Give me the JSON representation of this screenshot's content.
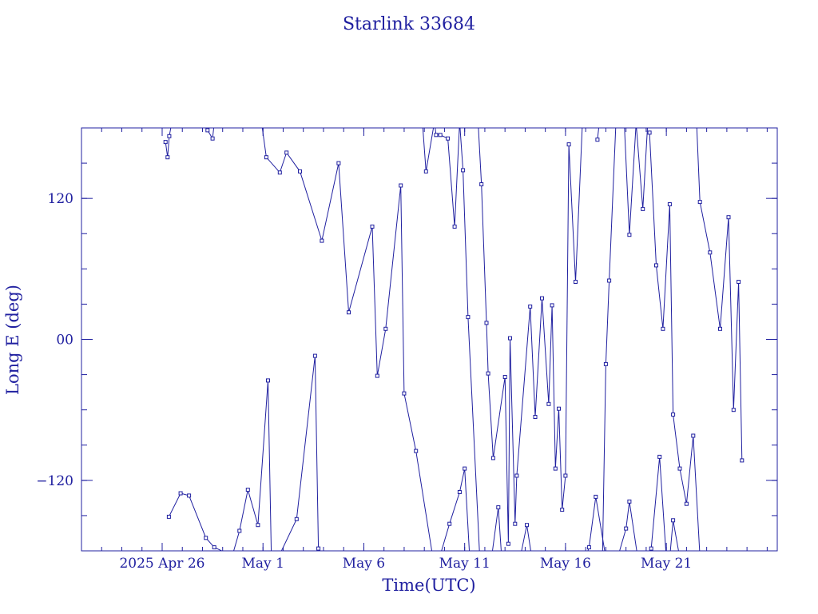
{
  "chart_data": {
    "type": "scatter",
    "title": "Starlink 33684",
    "xlabel": "Time(UTC)",
    "ylabel": "Long E (deg)",
    "x_ticks": [
      {
        "date": "2025-04-26",
        "label": "2025 Apr 26"
      },
      {
        "date": "2025-05-01",
        "label": "May  1"
      },
      {
        "date": "2025-05-06",
        "label": "May  6"
      },
      {
        "date": "2025-05-11",
        "label": "May 11"
      },
      {
        "date": "2025-05-16",
        "label": "May 16"
      },
      {
        "date": "2025-05-21",
        "label": "May 21"
      }
    ],
    "xlim": [
      "2025-04-22T00:00",
      "2025-05-26T12:00"
    ],
    "ylim": [
      -180,
      180
    ],
    "y_ticks": [
      -120,
      0,
      120
    ],
    "y_tick_labels": [
      "−120",
      "00",
      "120"
    ],
    "y_minor_step": 30,
    "grid": false,
    "legend": "none",
    "color": "#2020a0",
    "series": [
      {
        "points": [
          [
            "2025-04-26T04:00",
            168
          ],
          [
            "2025-04-26T06:30",
            155
          ],
          [
            "2025-04-26T08:30",
            173
          ],
          [
            "2025-04-26T11:00",
            183
          ]
        ]
      },
      {
        "points": [
          [
            "2025-04-28T06:00",
            178
          ],
          [
            "2025-04-28T12:00",
            171
          ],
          [
            "2025-04-28T14:00",
            184
          ]
        ]
      },
      {
        "points": [
          [
            "2025-04-30T22:00",
            186
          ],
          [
            "2025-05-01T04:00",
            155
          ],
          [
            "2025-05-01T20:00",
            142
          ],
          [
            "2025-05-02T04:00",
            159
          ],
          [
            "2025-05-02T20:00",
            143
          ],
          [
            "2025-05-03T22:00",
            84
          ],
          [
            "2025-05-04T18:00",
            150
          ],
          [
            "2025-05-05T06:00",
            23
          ],
          [
            "2025-05-06T10:00",
            96
          ],
          [
            "2025-05-06T16:00",
            -31
          ],
          [
            "2025-05-07T02:00",
            9
          ],
          [
            "2025-05-07T20:00",
            131
          ],
          [
            "2025-05-08T00:00",
            -46
          ],
          [
            "2025-05-08T14:00",
            -95
          ],
          [
            "2025-05-09T10:00",
            -185
          ]
        ]
      },
      {
        "points": [
          [
            "2025-05-08T22:00",
            182
          ],
          [
            "2025-05-09T02:00",
            143
          ],
          [
            "2025-05-09T12:00",
            185
          ],
          [
            "2025-05-09T14:00",
            174
          ],
          [
            "2025-05-09T19:00",
            174
          ],
          [
            "2025-05-10T04:00",
            171
          ],
          [
            "2025-05-10T12:00",
            96
          ],
          [
            "2025-05-10T18:00",
            185
          ],
          [
            "2025-05-10T22:00",
            144
          ],
          [
            "2025-05-11T04:00",
            19
          ],
          [
            "2025-05-11T18:00",
            -186
          ]
        ]
      },
      {
        "points": [
          [
            "2025-05-11T16:00",
            185
          ],
          [
            "2025-05-11T20:00",
            132
          ],
          [
            "2025-05-12T02:00",
            14
          ],
          [
            "2025-05-12T04:00",
            -29
          ],
          [
            "2025-05-12T10:00",
            -101
          ],
          [
            "2025-05-13T00:00",
            -32
          ],
          [
            "2025-05-13T04:00",
            -174
          ],
          [
            "2025-05-13T06:00",
            1
          ],
          [
            "2025-05-13T12:00",
            -157
          ],
          [
            "2025-05-13T14:00",
            -116
          ],
          [
            "2025-05-14T06:00",
            28
          ],
          [
            "2025-05-14T12:00",
            -66
          ],
          [
            "2025-05-14T20:00",
            35
          ],
          [
            "2025-05-15T04:00",
            -55
          ],
          [
            "2025-05-15T08:00",
            29
          ],
          [
            "2025-05-15T12:00",
            -110
          ],
          [
            "2025-05-15T16:00",
            -59
          ],
          [
            "2025-05-15T20:00",
            -145
          ],
          [
            "2025-05-16T00:00",
            -116
          ],
          [
            "2025-05-16T04:00",
            166
          ],
          [
            "2025-05-16T12:00",
            49
          ],
          [
            "2025-05-16T20:00",
            183
          ]
        ]
      },
      {
        "points": [
          [
            "2025-05-17T14:00",
            170
          ],
          [
            "2025-05-17T16:00",
            183
          ]
        ]
      },
      {
        "points": [
          [
            "2025-05-17T20:00",
            -185
          ],
          [
            "2025-05-18T00:00",
            -21
          ],
          [
            "2025-05-18T04:00",
            50
          ],
          [
            "2025-05-18T12:00",
            184
          ]
        ]
      },
      {
        "points": [
          [
            "2025-05-18T22:00",
            184
          ],
          [
            "2025-05-19T04:00",
            89
          ],
          [
            "2025-05-19T12:00",
            184
          ],
          [
            "2025-05-19T20:00",
            111
          ],
          [
            "2025-05-20T02:00",
            186
          ]
        ]
      },
      {
        "points": [
          [
            "2025-05-20T04:00",
            176
          ],
          [
            "2025-05-20T12:00",
            63
          ],
          [
            "2025-05-20T20:00",
            9
          ],
          [
            "2025-05-21T04:00",
            115
          ],
          [
            "2025-05-21T08:00",
            -64
          ],
          [
            "2025-05-21T16:00",
            -110
          ],
          [
            "2025-05-22T00:00",
            -140
          ],
          [
            "2025-05-22T08:00",
            -82
          ],
          [
            "2025-05-22T16:00",
            -185
          ]
        ]
      },
      {
        "points": [
          [
            "2025-05-22T12:00",
            185
          ],
          [
            "2025-05-22T16:00",
            117
          ],
          [
            "2025-05-23T04:00",
            74
          ],
          [
            "2025-05-23T16:00",
            9
          ],
          [
            "2025-05-24T02:00",
            104
          ],
          [
            "2025-05-24T08:00",
            -60
          ],
          [
            "2025-05-24T14:00",
            49
          ],
          [
            "2025-05-24T18:00",
            -103
          ]
        ]
      },
      {
        "points": [
          [
            "2025-04-26T08:00",
            -151
          ],
          [
            "2025-04-26T22:00",
            -131
          ],
          [
            "2025-04-27T08:00",
            -133
          ],
          [
            "2025-04-28T04:00",
            -169
          ],
          [
            "2025-04-28T14:00",
            -177
          ],
          [
            "2025-04-29T02:00",
            -181
          ],
          [
            "2025-04-29T08:00",
            -186
          ]
        ]
      },
      {
        "points": [
          [
            "2025-04-29T12:00",
            -183
          ],
          [
            "2025-04-29T20:00",
            -163
          ],
          [
            "2025-04-30T06:00",
            -128
          ],
          [
            "2025-04-30T18:00",
            -158
          ],
          [
            "2025-05-01T06:00",
            -35
          ],
          [
            "2025-05-01T10:00",
            -186
          ]
        ]
      },
      {
        "points": [
          [
            "2025-05-01T18:00",
            -186
          ],
          [
            "2025-05-02T16:00",
            -153
          ],
          [
            "2025-05-03T14:00",
            -14
          ],
          [
            "2025-05-03T18:00",
            -178
          ],
          [
            "2025-05-03T22:00",
            -186
          ]
        ]
      },
      {
        "points": [
          [
            "2025-05-09T18:00",
            -186
          ],
          [
            "2025-05-10T06:00",
            -157
          ],
          [
            "2025-05-10T18:00",
            -130
          ],
          [
            "2025-05-11T00:00",
            -110
          ],
          [
            "2025-05-11T06:00",
            -186
          ]
        ]
      },
      {
        "points": [
          [
            "2025-05-12T08:00",
            -186
          ],
          [
            "2025-05-12T16:00",
            -143
          ],
          [
            "2025-05-12T20:00",
            -186
          ]
        ]
      },
      {
        "points": [
          [
            "2025-05-13T18:00",
            -186
          ],
          [
            "2025-05-14T02:00",
            -158
          ],
          [
            "2025-05-14T08:00",
            -186
          ]
        ]
      },
      {
        "points": [
          [
            "2025-05-17T00:00",
            -186
          ],
          [
            "2025-05-17T04:00",
            -177
          ],
          [
            "2025-05-17T12:00",
            -134
          ],
          [
            "2025-05-18T00:00",
            -186
          ]
        ]
      },
      {
        "points": [
          [
            "2025-05-18T14:00",
            -186
          ],
          [
            "2025-05-19T00:00",
            -161
          ],
          [
            "2025-05-19T04:00",
            -138
          ],
          [
            "2025-05-19T14:00",
            -186
          ]
        ]
      },
      {
        "points": [
          [
            "2025-05-20T00:00",
            -186
          ],
          [
            "2025-05-20T06:00",
            -178
          ],
          [
            "2025-05-20T16:00",
            -100
          ],
          [
            "2025-05-21T00:00",
            -186
          ]
        ]
      },
      {
        "points": [
          [
            "2025-05-21T04:00",
            -186
          ],
          [
            "2025-05-21T08:00",
            -154
          ],
          [
            "2025-05-21T16:00",
            -186
          ]
        ]
      }
    ]
  }
}
